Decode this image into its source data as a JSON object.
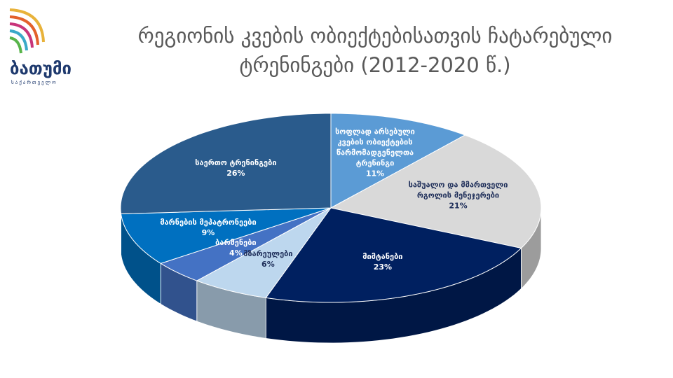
{
  "logo": {
    "name": "ბათუმი",
    "country": "საქართველო"
  },
  "chart_data": {
    "type": "pie3d",
    "title": "რეგიონის კვების ობიექტებისათვის ჩატარებული ტრენინგები (2012-2020 წ.)",
    "categories": [
      "სოფლად არსებული კვების ობიექტების წარმომადგენელთა ტრენინგი",
      "საშუალო და მმართველი რგოლის მენეჯერები",
      "მიმტანები",
      "მზარეულები",
      "ბარმენები",
      "მარნების მეპატრონეები",
      "საერთო ტრენინგები"
    ],
    "values": [
      11,
      21,
      23,
      6,
      4,
      9,
      26
    ],
    "value_labels": [
      "11%",
      "21%",
      "23%",
      "6%",
      "4%",
      "9%",
      "26%"
    ],
    "colors": [
      "#5b9bd5",
      "#d9d9d9",
      "#002060",
      "#bdd7ee",
      "#4472c4",
      "#0070c0",
      "#2a5b8c"
    ]
  }
}
